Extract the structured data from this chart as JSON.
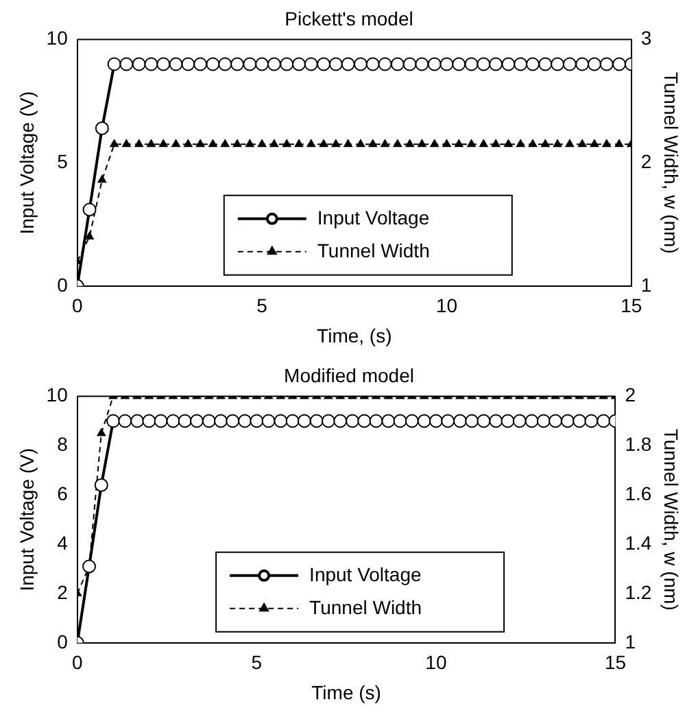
{
  "chart_data": [
    {
      "type": "line",
      "title": "Pickett's model",
      "xlabel": "Time, (s)",
      "ylabel": "Input Voltage (V)",
      "y2label": "Tunnel Width, w (nm)",
      "x": [
        0,
        0.33,
        0.67,
        1,
        1.33,
        1.67,
        2,
        2.33,
        2.67,
        3,
        3.33,
        3.67,
        4,
        4.33,
        4.67,
        5,
        5.33,
        5.67,
        6,
        6.33,
        6.67,
        7,
        7.33,
        7.67,
        8,
        8.33,
        8.67,
        9,
        9.33,
        9.67,
        10,
        10.33,
        10.67,
        11,
        11.33,
        11.67,
        12,
        12.33,
        12.67,
        13,
        13.33,
        13.67,
        14,
        14.33,
        14.67,
        15
      ],
      "series": [
        {
          "name": "Input Voltage",
          "color": "#000000",
          "marker": "circle",
          "line_style": "solid",
          "values": [
            0,
            3.1,
            6.4,
            9,
            9,
            9,
            9,
            9,
            9,
            9,
            9,
            9,
            9,
            9,
            9,
            9,
            9,
            9,
            9,
            9,
            9,
            9,
            9,
            9,
            9,
            9,
            9,
            9,
            9,
            9,
            9,
            9,
            9,
            9,
            9,
            9,
            9,
            9,
            9,
            9,
            9,
            9,
            9,
            9,
            9,
            9
          ]
        },
        {
          "name": "Tunnel Width",
          "color": "#000000",
          "marker": "triangle",
          "line_style": "dashed",
          "axis": "y2",
          "values": [
            1.2,
            1.4,
            1.86,
            2.15,
            2.15,
            2.15,
            2.15,
            2.15,
            2.15,
            2.15,
            2.15,
            2.15,
            2.15,
            2.15,
            2.15,
            2.15,
            2.15,
            2.15,
            2.15,
            2.15,
            2.15,
            2.15,
            2.15,
            2.15,
            2.15,
            2.15,
            2.15,
            2.15,
            2.15,
            2.15,
            2.15,
            2.15,
            2.15,
            2.15,
            2.15,
            2.15,
            2.15,
            2.15,
            2.15,
            2.15,
            2.15,
            2.15,
            2.15,
            2.15,
            2.15,
            2.15
          ]
        }
      ],
      "xlim": [
        0,
        15
      ],
      "xticks": [
        0,
        5,
        10,
        15
      ],
      "ylim": [
        0,
        10
      ],
      "yticks": [
        0,
        5,
        10
      ],
      "y2lim": [
        1,
        3
      ],
      "y2ticks": [
        1,
        2,
        3
      ],
      "grid": false,
      "legend": "bottom"
    },
    {
      "type": "line",
      "title": "Modified model",
      "xlabel": "Time (s)",
      "ylabel": "Input Voltage (V)",
      "y2label": "Tunnel Width, w (nm)",
      "x": [
        0,
        0.33,
        0.67,
        1,
        1.33,
        1.67,
        2,
        2.33,
        2.67,
        3,
        3.33,
        3.67,
        4,
        4.33,
        4.67,
        5,
        5.33,
        5.67,
        6,
        6.33,
        6.67,
        7,
        7.33,
        7.67,
        8,
        8.33,
        8.67,
        9,
        9.33,
        9.67,
        10,
        10.33,
        10.67,
        11,
        11.33,
        11.67,
        12,
        12.33,
        12.67,
        13,
        13.33,
        13.67,
        14,
        14.33,
        14.67,
        15
      ],
      "series": [
        {
          "name": "Input Voltage",
          "color": "#000000",
          "marker": "circle",
          "line_style": "solid",
          "values": [
            0,
            3.1,
            6.4,
            9,
            9,
            9,
            9,
            9,
            9,
            9,
            9,
            9,
            9,
            9,
            9,
            9,
            9,
            9,
            9,
            9,
            9,
            9,
            9,
            9,
            9,
            9,
            9,
            9,
            9,
            9,
            9,
            9,
            9,
            9,
            9,
            9,
            9,
            9,
            9,
            9,
            9,
            9,
            9,
            9,
            9,
            9
          ]
        },
        {
          "name": "Tunnel Width",
          "color": "#000000",
          "marker": "triangle",
          "line_style": "dashed",
          "axis": "y2",
          "values": [
            1.2,
            1.31,
            1.85,
            2,
            2,
            2,
            2,
            2,
            2,
            2,
            2,
            2,
            2,
            2,
            2,
            2,
            2,
            2,
            2,
            2,
            2,
            2,
            2,
            2,
            2,
            2,
            2,
            2,
            2,
            2,
            2,
            2,
            2,
            2,
            2,
            2,
            2,
            2,
            2,
            2,
            2,
            2,
            2,
            2,
            2,
            2
          ]
        }
      ],
      "xlim": [
        0,
        15
      ],
      "xticks": [
        0,
        5,
        10,
        15
      ],
      "ylim": [
        0,
        10
      ],
      "yticks": [
        0,
        2,
        4,
        6,
        8,
        10
      ],
      "y2lim": [
        1,
        2
      ],
      "y2ticks": [
        1,
        1.2,
        1.4,
        1.6,
        1.8,
        2
      ],
      "grid": false,
      "legend": "bottom"
    }
  ]
}
